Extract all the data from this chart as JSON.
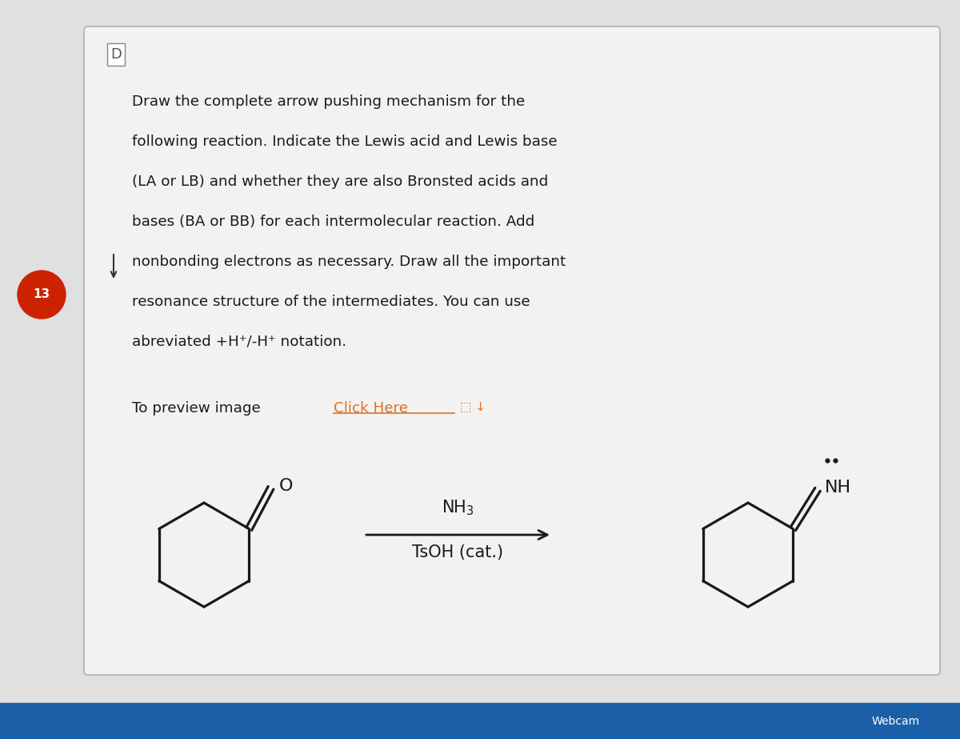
{
  "bg_color": "#e0e0e0",
  "card_bg": "#f2f2f2",
  "card_border": "#bbbbbb",
  "text_color": "#1a1a1a",
  "link_color": "#e07020",
  "number_bg": "#cc2200",
  "number_color": "#ffffff",
  "title_lines": [
    "Draw the complete arrow pushing mechanism for the",
    "following reaction. Indicate the Lewis acid and Lewis base",
    "(LA or LB) and whether they are also Bronsted acids and",
    "bases (BA or BB) for each intermolecular reaction. Add",
    "nonbonding electrons as necessary. Draw all the important",
    "resonance structure of the intermediates. You can use",
    "abreviated +H⁺/-H⁺ notation."
  ],
  "preview_text": "To preview image ",
  "link_text": "Click Here",
  "question_number": "13",
  "nh3_label": "NH$_3$",
  "tsoh_label": "TsOH (cat.)",
  "nh_label": "NH",
  "figsize": [
    12.0,
    9.23
  ],
  "dpi": 100
}
